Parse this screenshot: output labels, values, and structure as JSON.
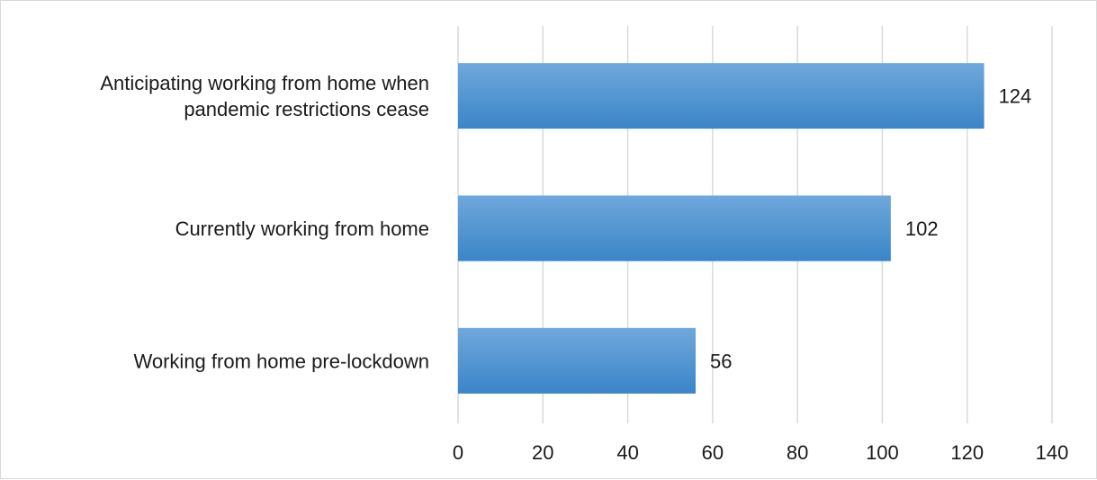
{
  "chart_data": {
    "type": "bar",
    "orientation": "horizontal",
    "categories": [
      [
        "Anticipating working from home when",
        "pandemic restrictions cease"
      ],
      [
        "Currently working from home"
      ],
      [
        "Working from home pre-lockdown"
      ]
    ],
    "values": [
      124,
      102,
      56
    ],
    "data_labels": [
      "124",
      "102",
      "56"
    ],
    "xlim": [
      0,
      140
    ],
    "xticks": [
      0,
      20,
      40,
      60,
      80,
      100,
      120,
      140
    ],
    "xtick_labels": [
      "0",
      "20",
      "40",
      "60",
      "80",
      "100",
      "120",
      "140"
    ],
    "title": "",
    "xlabel": "",
    "ylabel": "",
    "grid": "vertical",
    "legend": "none",
    "colors": {
      "bar_top": "#6fa8dc",
      "bar_bottom": "#3a85c8",
      "grid": "#d9d9d9",
      "text": "#1a1a1a"
    }
  }
}
